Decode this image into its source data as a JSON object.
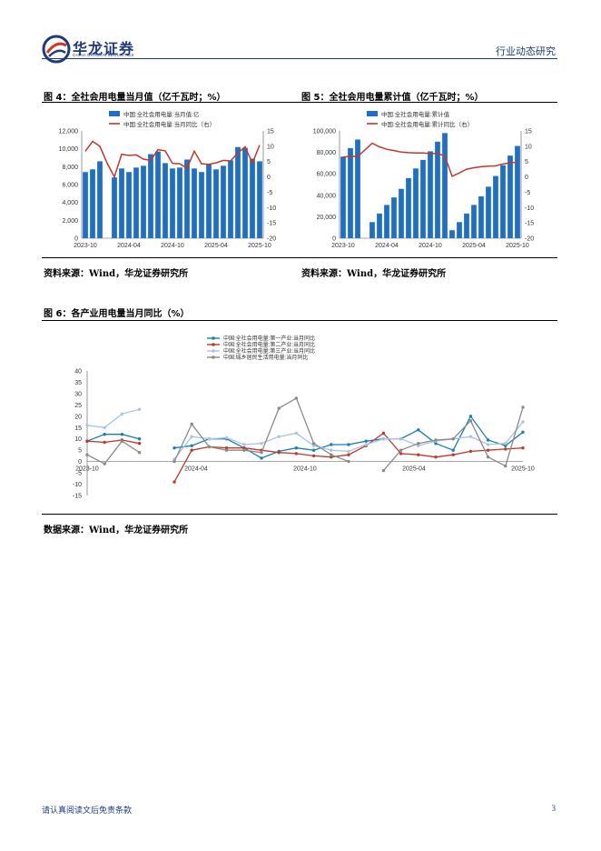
{
  "header": {
    "brand_cn": "华龙证券",
    "brand_en": "CHINA DRAGON SECURITIES",
    "section": "行业动态研究"
  },
  "fig4": {
    "title": "图 4：全社会用电量当月值（亿千瓦时；%）",
    "source": "资料来源：Wind，华龙证券研究所"
  },
  "fig5": {
    "title": "图 5：全社会用电量累计值（亿千瓦时；%）",
    "source": "资料来源：Wind，华龙证券研究所"
  },
  "fig6": {
    "title": "图 6：各产业用电量当月同比（%）",
    "source": "数据来源：Wind，华龙证券研究所"
  },
  "footer": {
    "disclaimer": "请认真阅读文后免责条款",
    "page": "3"
  },
  "colors": {
    "brand": "#1f3a7a",
    "bar": "#1f6fc5",
    "red": "#c0392b"
  },
  "chart_data": [
    {
      "type": "bar",
      "legend": [
        "中国:全社会用电量:当月值:亿",
        "中国:全社会用电量:当月同比（右）"
      ],
      "x_ticks": [
        "2023-10",
        "2024-04",
        "2024-10",
        "2025-04",
        "2025-10"
      ],
      "y_left_ticks": [
        "12,000",
        "10,000",
        "8,000",
        "6,000",
        "4,000",
        "2,000",
        "0"
      ],
      "y_right_ticks": [
        "15",
        "10",
        "5",
        "0",
        "-5",
        "-10",
        "-15",
        "-20"
      ],
      "ylim": [
        0,
        12000
      ],
      "y2lim": [
        -20,
        15
      ],
      "series": [
        {
          "name": "中国:全社会用电量:当月值:亿",
          "kind": "bar",
          "values": [
            7400,
            7700,
            8600,
            null,
            6800,
            7800,
            7400,
            7900,
            8100,
            9400,
            9700,
            8400,
            7800,
            7900,
            8800,
            7800,
            7400,
            8300,
            7700,
            8100,
            8700,
            10200,
            10100,
            8900,
            8600
          ]
        },
        {
          "name": "中国:全社会用电量:当月同比（右）",
          "kind": "line",
          "values": [
            8.4,
            11.6,
            10,
            4.5,
            0,
            7.4,
            7,
            7.2,
            5.8,
            5.4,
            8.9,
            8.5,
            4.4,
            4.3,
            2.8,
            8.4,
            4.3,
            4.1,
            4.6,
            5.4,
            5.2,
            7.8,
            9.8,
            4.5,
            10.4
          ]
        }
      ]
    },
    {
      "type": "bar",
      "legend": [
        "中国:全社会用电量:累计值",
        "中国:全社会用电量:累计同比（右）"
      ],
      "x_ticks": [
        "2023-10",
        "2024-04",
        "2024-10",
        "2025-04",
        "2025-10"
      ],
      "y_left_ticks": [
        "100,000",
        "80,000",
        "60,000",
        "40,000",
        "20,000",
        "0"
      ],
      "y_right_ticks": [
        "15",
        "10",
        "5",
        "0",
        "-5",
        "-10",
        "-15",
        "-20"
      ],
      "ylim": [
        0,
        100000
      ],
      "y2lim": [
        -20,
        15
      ],
      "series": [
        {
          "name": "中国:全社会用电量:累计值",
          "kind": "bar",
          "values": [
            76000,
            84000,
            92000,
            null,
            15000,
            23000,
            31000,
            38000,
            46000,
            56000,
            65000,
            73000,
            81000,
            90000,
            98000,
            7400,
            15000,
            23000,
            31000,
            39000,
            48000,
            58000,
            68000,
            77000,
            86000
          ]
        },
        {
          "name": "中国:全社会用电量:累计同比（右）",
          "kind": "line",
          "values": [
            6.5,
            6.7,
            6.7,
            8.8,
            11,
            9.8,
            9,
            8.6,
            8.1,
            7.9,
            7.8,
            7.8,
            7.6,
            7.6,
            6.8,
            0.2,
            1.3,
            2.5,
            3,
            3.3,
            3.5,
            3.6,
            4.2,
            4.6,
            4.8
          ]
        }
      ]
    },
    {
      "type": "line",
      "legend": [
        "中国:全社会用电量:第一产业:当月同比",
        "中国:全社会用电量:第二产业:当月同比",
        "中国:全社会用电量:第三产业:当月同比",
        "中国:城乡居民生活用电量:当月同比"
      ],
      "x_ticks": [
        "2023-10",
        "2024-04",
        "2024-10",
        "2025-04",
        "2025-10"
      ],
      "y_ticks": [
        "40",
        "35",
        "30",
        "25",
        "20",
        "15",
        "10",
        "5",
        "0",
        "-5",
        "-10",
        "-15"
      ],
      "ylim": [
        -15,
        40
      ],
      "series": [
        {
          "name": "中国:全社会用电量:第一产业:当月同比",
          "color": "#1a7fb5",
          "values": [
            9,
            12,
            12,
            10,
            null,
            6,
            7,
            10,
            10,
            6,
            1.5,
            4.5,
            6,
            5,
            7.5,
            7.5,
            9,
            10,
            10,
            14,
            8,
            5,
            20,
            9.5,
            7,
            13
          ]
        },
        {
          "name": "中国:全社会用电量:第二产业:当月同比",
          "color": "#c0392b",
          "values": [
            9,
            8.5,
            9.5,
            8,
            null,
            -9,
            5,
            6.5,
            6,
            6,
            5,
            4,
            3.5,
            2.5,
            2,
            3,
            7,
            12.5,
            3.5,
            3,
            2,
            3,
            4.5,
            5,
            5.5,
            6
          ]
        },
        {
          "name": "中国:全社会用电量:第三产业:当月同比",
          "color": "#a9c4e6",
          "values": [
            16,
            15,
            21,
            23,
            null,
            1,
            11,
            10,
            10.5,
            7.5,
            8,
            11,
            12.5,
            7,
            5,
            4.5,
            7.5,
            10,
            10,
            7,
            9,
            10,
            11,
            7.5,
            8,
            17.5
          ]
        },
        {
          "name": "中国:城乡居民生活用电量:当月同比",
          "color": "#8a8a8a",
          "values": [
            3,
            -1,
            9,
            4,
            null,
            0,
            16.5,
            6.5,
            5,
            5,
            4,
            23.5,
            28,
            8,
            3,
            0,
            null,
            -4,
            5,
            8,
            9.5,
            10,
            18,
            2,
            -2,
            24
          ]
        }
      ]
    }
  ]
}
